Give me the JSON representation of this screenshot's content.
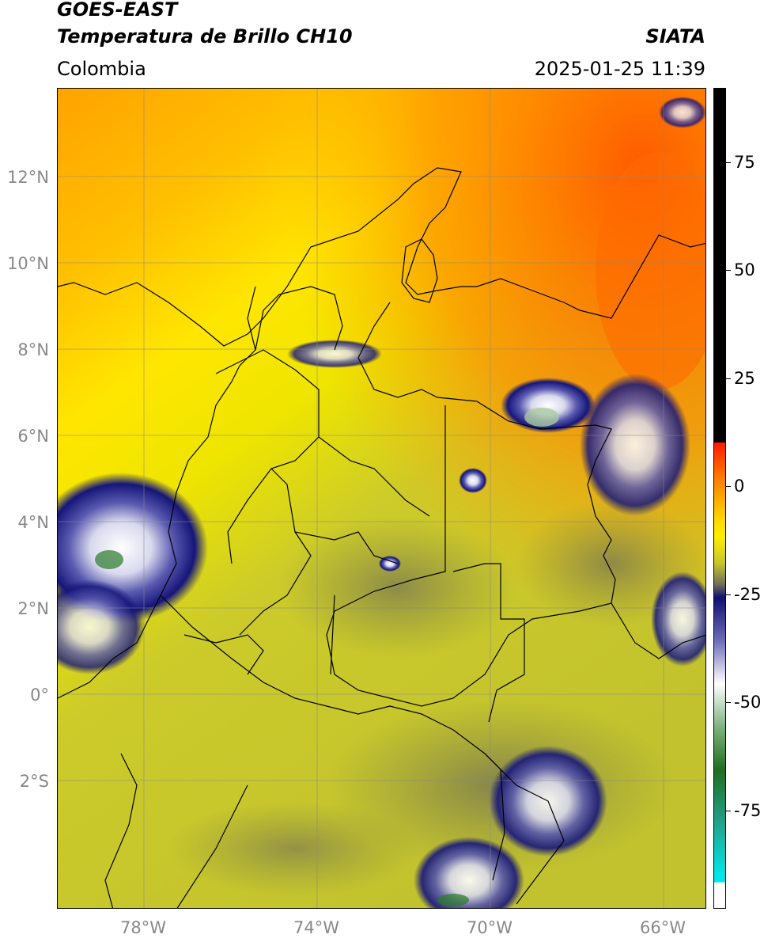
{
  "header": {
    "satellite": "GOES-EAST",
    "product": "Temperatura de Brillo CH10",
    "organization": "SIATA",
    "region": "Colombia",
    "timestamp": "2025-01-25 11:39"
  },
  "map": {
    "extent_lon": [
      -80,
      -65
    ],
    "extent_lat": [
      -5,
      14
    ],
    "lat_ticks": [
      {
        "label": "12°N",
        "value": 12
      },
      {
        "label": "10°N",
        "value": 10
      },
      {
        "label": "8°N",
        "value": 8
      },
      {
        "label": "6°N",
        "value": 6
      },
      {
        "label": "4°N",
        "value": 4
      },
      {
        "label": "2°N",
        "value": 2
      },
      {
        "label": "0°",
        "value": 0
      },
      {
        "label": "2°S",
        "value": -2
      }
    ],
    "lon_ticks": [
      {
        "label": "78°W",
        "value": -78
      },
      {
        "label": "74°W",
        "value": -74
      },
      {
        "label": "70°W",
        "value": -70
      },
      {
        "label": "66°W",
        "value": -66
      }
    ],
    "gridlines": true,
    "colors": {
      "warm_orange": "#ff6a00",
      "orange": "#ff9d00",
      "yellow": "#ffee00",
      "olive": "#c6c42a",
      "dark_olive": "#8f8f45",
      "navy": "#14157a",
      "white": "#ffffff",
      "green": "#2a7a2a"
    }
  },
  "colorbar": {
    "range": [
      -100,
      90
    ],
    "ticks": [
      {
        "label": "75",
        "value": 75
      },
      {
        "label": "50",
        "value": 50
      },
      {
        "label": "25",
        "value": 25
      },
      {
        "label": "0",
        "value": 0
      },
      {
        "label": "-25",
        "value": -25
      },
      {
        "label": "-50",
        "value": -50
      },
      {
        "label": "-75",
        "value": -75
      }
    ],
    "stops": [
      {
        "value": 90,
        "color": "#000000"
      },
      {
        "value": 8,
        "color": "#000000"
      },
      {
        "value": 7.9,
        "color": "#ff1a00"
      },
      {
        "value": 0,
        "color": "#ff7a00"
      },
      {
        "value": -10,
        "color": "#ffd800"
      },
      {
        "value": -14,
        "color": "#ffee00"
      },
      {
        "value": -20,
        "color": "#c7c52c"
      },
      {
        "value": -25,
        "color": "#6e6e5a"
      },
      {
        "value": -28,
        "color": "#101070"
      },
      {
        "value": -38,
        "color": "#6d6db8"
      },
      {
        "value": -48,
        "color": "#ffffff"
      },
      {
        "value": -58,
        "color": "#7fb27f"
      },
      {
        "value": -68,
        "color": "#1f6e1f"
      },
      {
        "value": -80,
        "color": "#22a08a"
      },
      {
        "value": -92,
        "color": "#00e5e5"
      },
      {
        "value": -94,
        "color": "#00e5e5"
      },
      {
        "value": -94.1,
        "color": "#ffffff"
      },
      {
        "value": -100,
        "color": "#ffffff"
      }
    ]
  }
}
